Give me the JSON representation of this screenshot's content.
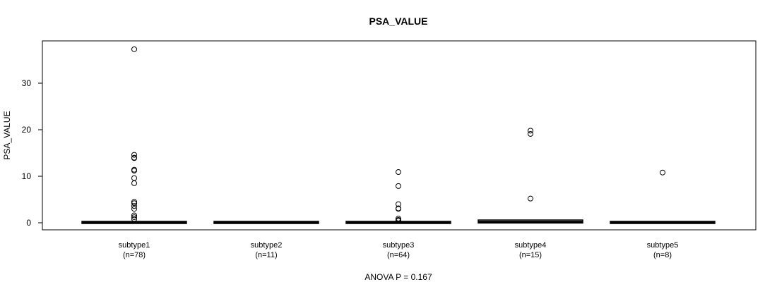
{
  "chart_data": {
    "type": "boxplot",
    "title": "PSA_VALUE",
    "xlabel": "ANOVA P = 0.167",
    "ylabel": "PSA_VALUE",
    "ylim": [
      -1.5,
      39
    ],
    "y_ticks": [
      0,
      10,
      20,
      30
    ],
    "categories": [
      "subtype1",
      "subtype2",
      "subtype3",
      "subtype4",
      "subtype5"
    ],
    "category_counts": [
      "(n=78)",
      "(n=11)",
      "(n=64)",
      "(n=15)",
      "(n=8)"
    ],
    "series": [
      {
        "label": "subtype1",
        "box": {
          "q1": 0.05,
          "median": 0.1,
          "q3": 0.15,
          "whisker_low": 0.0,
          "whisker_high": 0.3
        },
        "outliers": [
          37.3,
          14.6,
          14.0,
          13.9,
          11.4,
          11.2,
          9.6,
          8.5,
          4.5,
          4.2,
          3.6,
          3.0,
          1.6,
          1.2,
          0.8
        ]
      },
      {
        "label": "subtype2",
        "box": {
          "q1": 0.05,
          "median": 0.1,
          "q3": 0.15,
          "whisker_low": 0.0,
          "whisker_high": 0.2
        },
        "outliers": []
      },
      {
        "label": "subtype3",
        "box": {
          "q1": 0.05,
          "median": 0.1,
          "q3": 0.15,
          "whisker_low": 0.0,
          "whisker_high": 0.3
        },
        "outliers": [
          10.9,
          7.9,
          4.0,
          3.1,
          3.0,
          0.9,
          0.6,
          0.4
        ]
      },
      {
        "label": "subtype4",
        "box": {
          "q1": 0.1,
          "median": 0.2,
          "q3": 0.45,
          "whisker_low": 0.0,
          "whisker_high": 0.6
        },
        "outliers": [
          19.8,
          19.1,
          5.2
        ]
      },
      {
        "label": "subtype5",
        "box": {
          "q1": 0.05,
          "median": 0.1,
          "q3": 0.15,
          "whisker_low": 0.0,
          "whisker_high": 0.2
        },
        "outliers": [
          10.8
        ]
      }
    ],
    "grid": false,
    "legend": "none"
  }
}
